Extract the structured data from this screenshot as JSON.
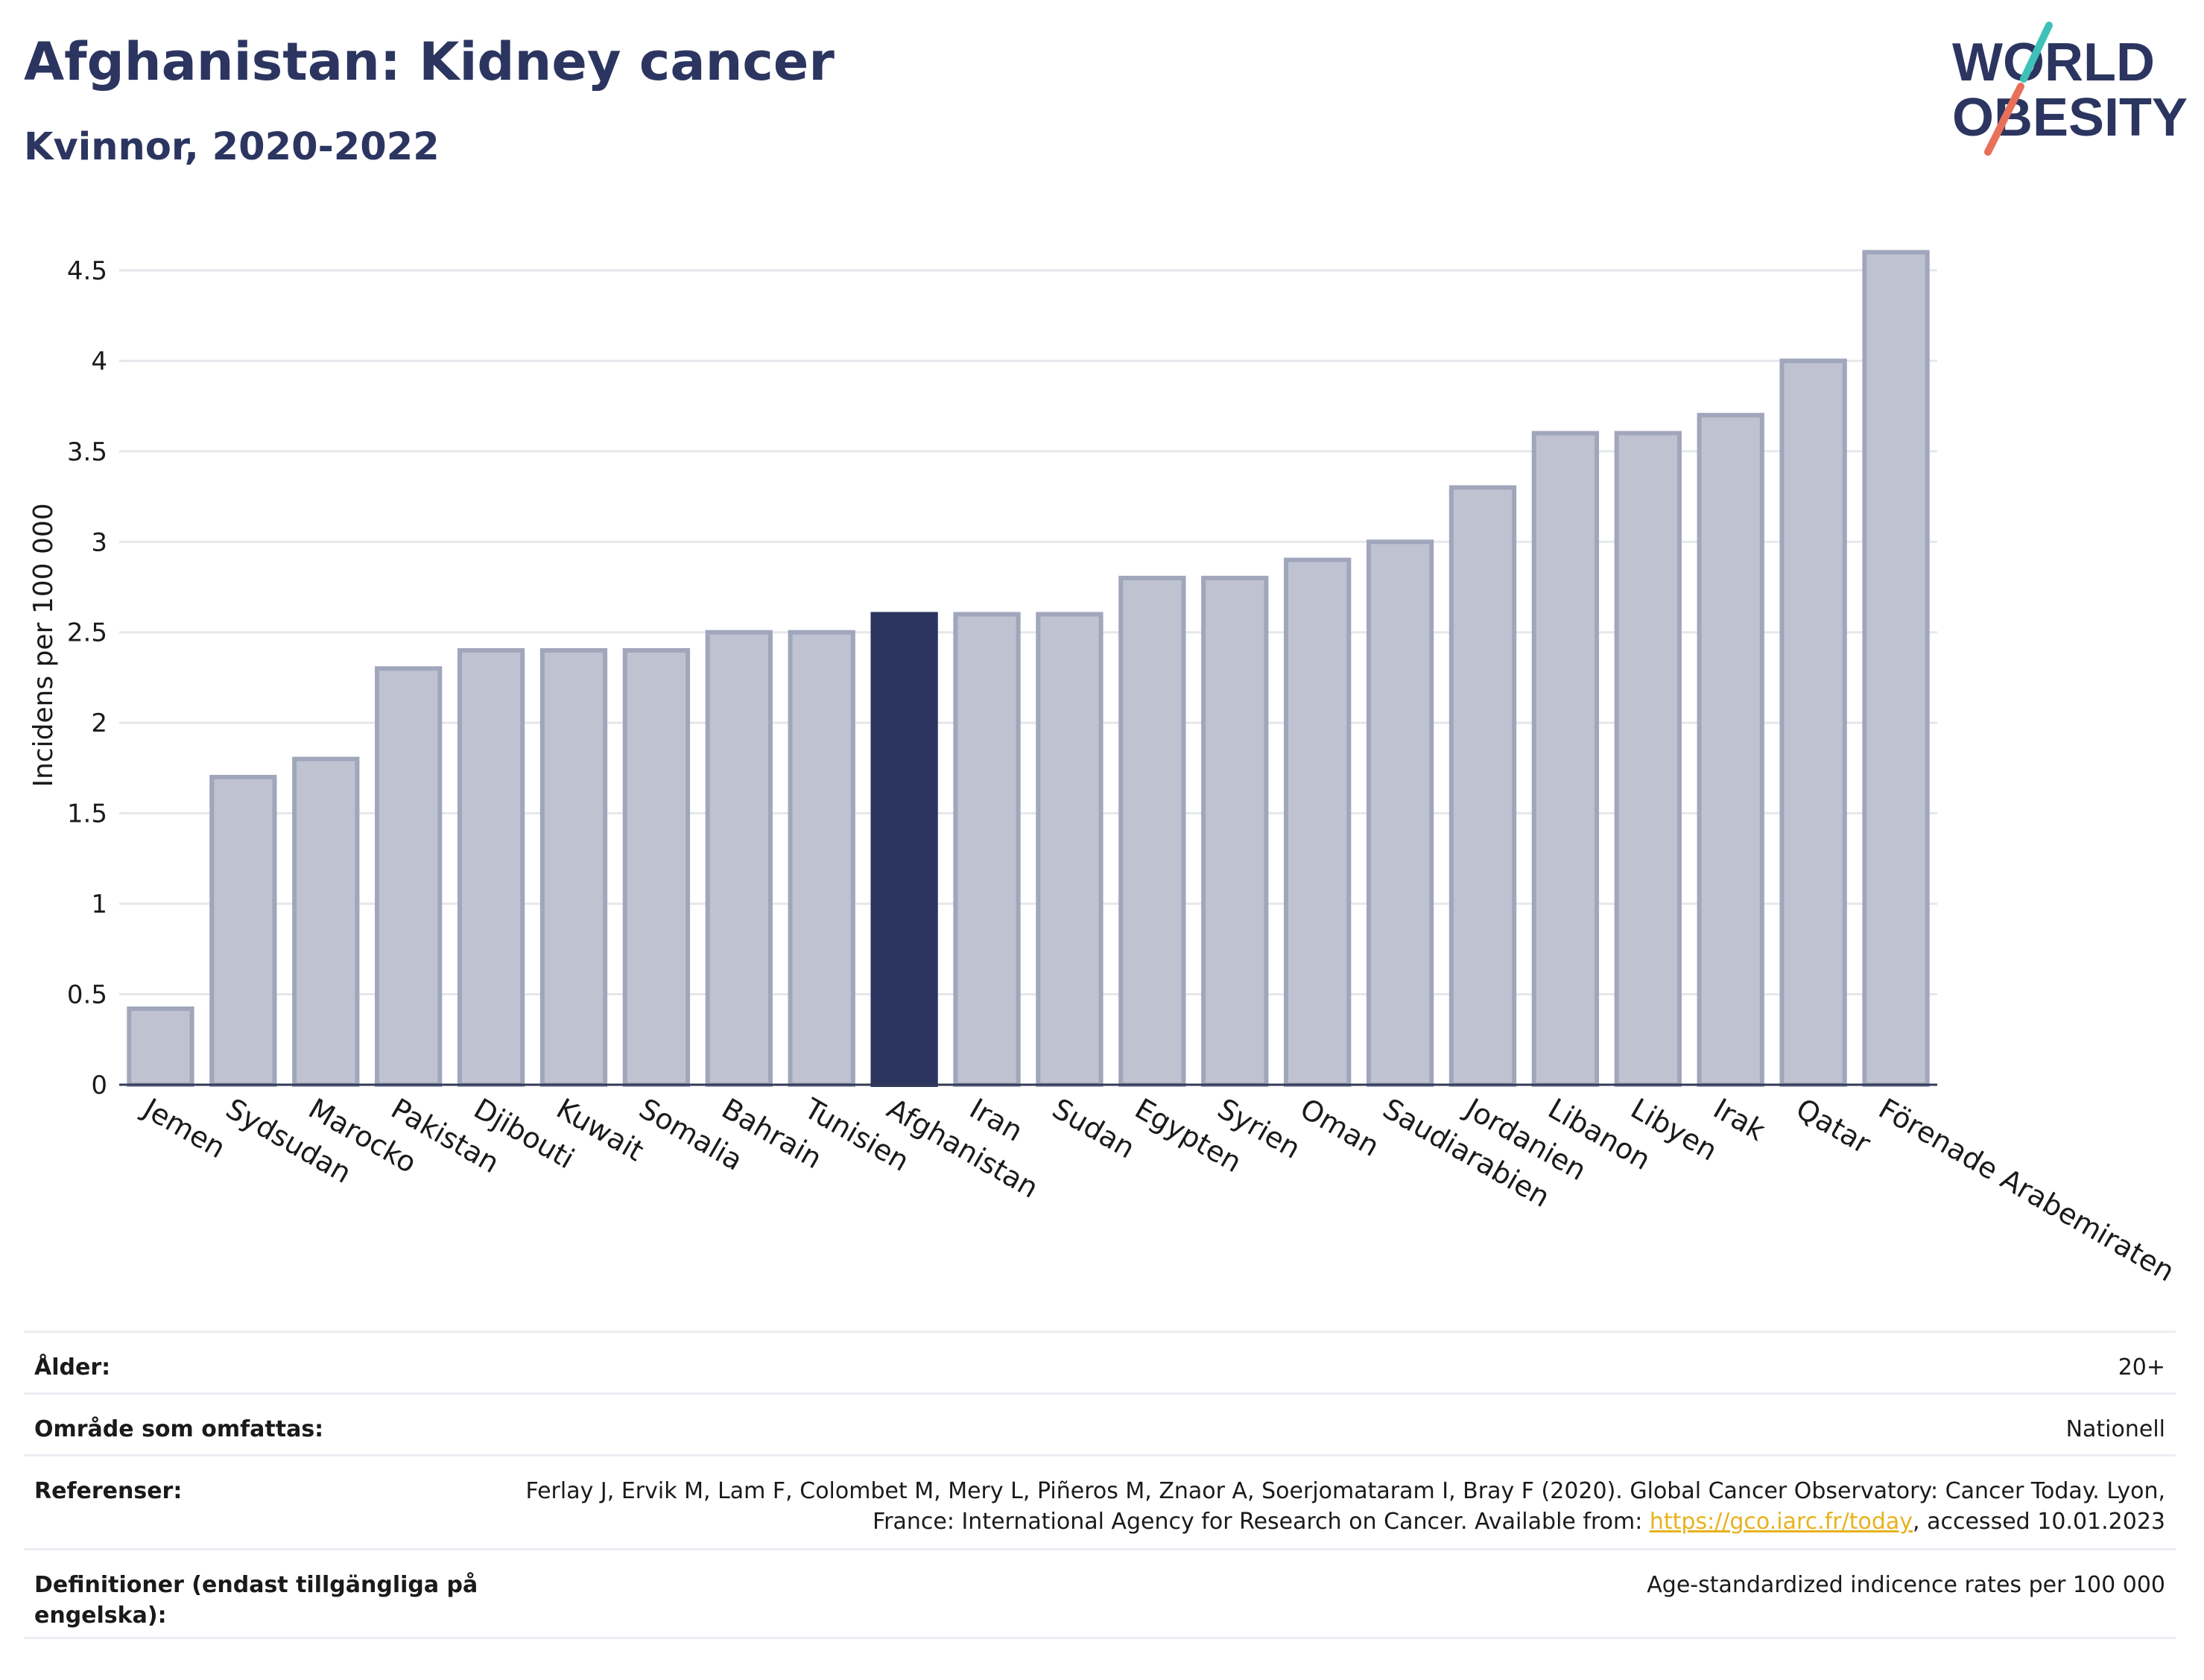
{
  "header": {
    "title": "Afghanistan: Kidney cancer",
    "subtitle": "Kvinnor, 2020-2022",
    "logo_line1": "WORLD",
    "logo_line2": "OBESITY"
  },
  "colors": {
    "highlight": "#2b3560",
    "bar_fill": "#bfc2d0",
    "bar_stroke": "#a0a6bb",
    "logo_teal": "#3ec1b8",
    "logo_coral": "#e8705a",
    "link": "#e8b21c"
  },
  "chart_data": {
    "type": "bar",
    "title": "Afghanistan: Kidney cancer",
    "subtitle": "Kvinnor, 2020-2022",
    "ylabel": "Incidens per 100 000",
    "xlabel": "",
    "ylim": [
      0,
      4.8
    ],
    "yticks": [
      0,
      0.5,
      1,
      1.5,
      2,
      2.5,
      3,
      3.5,
      4,
      4.5
    ],
    "ytick_labels": [
      "0",
      "0.5",
      "1",
      "1.5",
      "2",
      "2.5",
      "3",
      "3.5",
      "4",
      "4.5"
    ],
    "grid": true,
    "highlight": "Afghanistan",
    "categories": [
      "Jemen",
      "Sydsudan",
      "Marocko",
      "Pakistan",
      "Djibouti",
      "Kuwait",
      "Somalia",
      "Bahrain",
      "Tunisien",
      "Afghanistan",
      "Iran",
      "Sudan",
      "Egypten",
      "Syrien",
      "Oman",
      "Saudiarabien",
      "Jordanien",
      "Libanon",
      "Libyen",
      "Irak",
      "Qatar",
      "Förenade Arabemiraten"
    ],
    "values": [
      0.42,
      1.7,
      1.8,
      2.3,
      2.4,
      2.4,
      2.4,
      2.5,
      2.5,
      2.6,
      2.6,
      2.6,
      2.8,
      2.8,
      2.9,
      3.0,
      3.3,
      3.6,
      3.6,
      3.7,
      4.0,
      4.6
    ]
  },
  "info_table": [
    {
      "label": "Ålder:",
      "value": "20+"
    },
    {
      "label": "Område som omfattas:",
      "value": "Nationell"
    },
    {
      "label": "Referenser:",
      "value_before": "Ferlay J, Ervik M, Lam F, Colombet M, Mery L, Piñeros M, Znaor A, Soerjomataram I, Bray F (2020). Global Cancer Observatory: Cancer Today. Lyon, France: International Agency for Research on Cancer. Available from: ",
      "link": "https://gco.iarc.fr/today",
      "value_after": ", accessed 10.01.2023"
    },
    {
      "label": "Definitioner (endast tillgängliga på engelska):",
      "value": "Age-standardized indicence rates per 100 000"
    }
  ]
}
